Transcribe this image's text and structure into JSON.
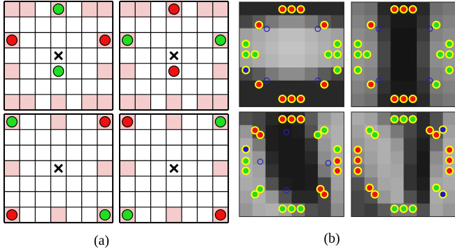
{
  "captions": {
    "a": "(a)",
    "b": "(b)"
  },
  "colors": {
    "grid_line": "#000000",
    "shaded_cell": "#f4cccc",
    "dot_green": "#22dd22",
    "dot_red": "#ee1111",
    "dot_blue": "#1a1acc",
    "dot_ring_yellow": "#ffff00",
    "open_circle_blue": "#2222bb",
    "cross": "#000000"
  },
  "grids": [
    {
      "id": "top-left",
      "shaded": [
        [
          0,
          0
        ],
        [
          0,
          1
        ],
        [
          0,
          3
        ],
        [
          0,
          5
        ],
        [
          0,
          6
        ],
        [
          2,
          0
        ],
        [
          2,
          6
        ],
        [
          4,
          0
        ],
        [
          4,
          6
        ],
        [
          6,
          0
        ],
        [
          6,
          1
        ],
        [
          6,
          3
        ],
        [
          6,
          5
        ],
        [
          6,
          6
        ]
      ],
      "dots": [
        {
          "r": 0,
          "c": 3,
          "color": "green"
        },
        {
          "r": 2,
          "c": 0,
          "color": "red"
        },
        {
          "r": 2,
          "c": 6,
          "color": "red"
        },
        {
          "r": 4,
          "c": 3,
          "color": "green"
        }
      ]
    },
    {
      "id": "top-right",
      "shaded": [
        [
          0,
          0
        ],
        [
          0,
          1
        ],
        [
          0,
          3
        ],
        [
          0,
          5
        ],
        [
          0,
          6
        ],
        [
          2,
          0
        ],
        [
          2,
          6
        ],
        [
          4,
          0
        ],
        [
          4,
          6
        ],
        [
          6,
          0
        ],
        [
          6,
          1
        ],
        [
          6,
          3
        ],
        [
          6,
          5
        ],
        [
          6,
          6
        ]
      ],
      "dots": [
        {
          "r": 0,
          "c": 3,
          "color": "red"
        },
        {
          "r": 2,
          "c": 0,
          "color": "green"
        },
        {
          "r": 2,
          "c": 6,
          "color": "green"
        },
        {
          "r": 4,
          "c": 3,
          "color": "red"
        }
      ]
    },
    {
      "id": "bottom-left",
      "shaded": [
        [
          0,
          0
        ],
        [
          0,
          3
        ],
        [
          0,
          6
        ],
        [
          3,
          0
        ],
        [
          3,
          6
        ],
        [
          6,
          0
        ],
        [
          6,
          3
        ],
        [
          6,
          6
        ]
      ],
      "dots": [
        {
          "r": 0,
          "c": 0,
          "color": "green"
        },
        {
          "r": 0,
          "c": 6,
          "color": "red"
        },
        {
          "r": 6,
          "c": 0,
          "color": "red"
        },
        {
          "r": 6,
          "c": 6,
          "color": "green"
        }
      ]
    },
    {
      "id": "bottom-right",
      "shaded": [
        [
          0,
          0
        ],
        [
          0,
          3
        ],
        [
          0,
          6
        ],
        [
          3,
          0
        ],
        [
          3,
          6
        ],
        [
          6,
          0
        ],
        [
          6,
          3
        ],
        [
          6,
          6
        ]
      ],
      "dots": [
        {
          "r": 0,
          "c": 0,
          "color": "red"
        },
        {
          "r": 0,
          "c": 6,
          "color": "green"
        },
        {
          "r": 6,
          "c": 0,
          "color": "green"
        },
        {
          "r": 6,
          "c": 6,
          "color": "red"
        }
      ]
    }
  ],
  "heatmaps": [
    {
      "id": "top-left",
      "cells": [
        [
          40,
          40,
          40,
          40,
          40,
          40,
          40,
          40
        ],
        [
          70,
          90,
          120,
          140,
          140,
          120,
          90,
          70
        ],
        [
          160,
          170,
          180,
          190,
          190,
          180,
          170,
          160
        ],
        [
          165,
          175,
          185,
          195,
          195,
          185,
          175,
          165
        ],
        [
          160,
          170,
          180,
          190,
          190,
          180,
          170,
          160
        ],
        [
          70,
          90,
          120,
          140,
          140,
          120,
          90,
          70
        ],
        [
          40,
          40,
          40,
          40,
          40,
          40,
          40,
          40
        ],
        [
          40,
          40,
          40,
          40,
          40,
          40,
          40,
          40
        ]
      ],
      "markers": [
        {
          "x": 3.3,
          "y": 0.55,
          "type": "red"
        },
        {
          "x": 4.0,
          "y": 0.55,
          "type": "red"
        },
        {
          "x": 4.7,
          "y": 0.55,
          "type": "red"
        },
        {
          "x": 1.5,
          "y": 1.75,
          "type": "red"
        },
        {
          "x": 6.5,
          "y": 1.75,
          "type": "red"
        },
        {
          "x": 2.1,
          "y": 2.05,
          "type": "open"
        },
        {
          "x": 6.0,
          "y": 2.05,
          "type": "open"
        },
        {
          "x": 0.5,
          "y": 3.2,
          "type": "green"
        },
        {
          "x": 0.5,
          "y": 4.0,
          "type": "green"
        },
        {
          "x": 1.2,
          "y": 4.0,
          "type": "green"
        },
        {
          "x": 6.8,
          "y": 4.0,
          "type": "green"
        },
        {
          "x": 7.5,
          "y": 4.0,
          "type": "green"
        },
        {
          "x": 7.5,
          "y": 3.2,
          "type": "green"
        },
        {
          "x": 0.5,
          "y": 5.2,
          "type": "blue"
        },
        {
          "x": 7.5,
          "y": 5.2,
          "type": "green"
        },
        {
          "x": 1.5,
          "y": 6.3,
          "type": "red"
        },
        {
          "x": 6.5,
          "y": 6.3,
          "type": "red"
        },
        {
          "x": 2.1,
          "y": 6.0,
          "type": "open"
        },
        {
          "x": 6.0,
          "y": 6.0,
          "type": "open"
        },
        {
          "x": 3.3,
          "y": 7.4,
          "type": "red"
        },
        {
          "x": 4.0,
          "y": 7.4,
          "type": "red"
        },
        {
          "x": 4.7,
          "y": 7.4,
          "type": "red"
        }
      ]
    },
    {
      "id": "top-right",
      "cells": [
        [
          120,
          110,
          40,
          30,
          30,
          40,
          110,
          120
        ],
        [
          130,
          120,
          50,
          25,
          25,
          50,
          120,
          130
        ],
        [
          140,
          130,
          60,
          20,
          20,
          60,
          130,
          140
        ],
        [
          150,
          140,
          70,
          20,
          20,
          70,
          140,
          150
        ],
        [
          150,
          140,
          70,
          20,
          20,
          70,
          140,
          150
        ],
        [
          140,
          130,
          60,
          20,
          20,
          60,
          130,
          140
        ],
        [
          130,
          120,
          50,
          25,
          25,
          50,
          120,
          130
        ],
        [
          120,
          110,
          40,
          30,
          30,
          40,
          110,
          120
        ]
      ],
      "markers": [
        {
          "x": 3.3,
          "y": 0.55,
          "type": "red"
        },
        {
          "x": 4.0,
          "y": 0.55,
          "type": "red"
        },
        {
          "x": 4.7,
          "y": 0.55,
          "type": "red"
        },
        {
          "x": 1.5,
          "y": 1.75,
          "type": "red"
        },
        {
          "x": 2.1,
          "y": 2.05,
          "type": "open"
        },
        {
          "x": 6.0,
          "y": 2.05,
          "type": "open"
        },
        {
          "x": 6.5,
          "y": 1.75,
          "type": "green"
        },
        {
          "x": 0.5,
          "y": 3.2,
          "type": "green"
        },
        {
          "x": 0.5,
          "y": 4.0,
          "type": "green"
        },
        {
          "x": 1.2,
          "y": 4.0,
          "type": "green"
        },
        {
          "x": 6.8,
          "y": 4.0,
          "type": "green"
        },
        {
          "x": 7.5,
          "y": 4.0,
          "type": "green"
        },
        {
          "x": 7.5,
          "y": 3.2,
          "type": "green"
        },
        {
          "x": 0.5,
          "y": 5.2,
          "type": "green"
        },
        {
          "x": 7.5,
          "y": 5.2,
          "type": "green"
        },
        {
          "x": 1.5,
          "y": 6.3,
          "type": "red"
        },
        {
          "x": 2.1,
          "y": 6.0,
          "type": "open"
        },
        {
          "x": 6.0,
          "y": 6.0,
          "type": "open"
        },
        {
          "x": 6.5,
          "y": 6.3,
          "type": "green"
        },
        {
          "x": 3.3,
          "y": 7.4,
          "type": "red"
        },
        {
          "x": 4.0,
          "y": 7.4,
          "type": "red"
        },
        {
          "x": 4.7,
          "y": 7.4,
          "type": "red"
        }
      ]
    },
    {
      "id": "bottom-left",
      "cells": [
        [
          80,
          70,
          40,
          30,
          40,
          90,
          150,
          170
        ],
        [
          150,
          70,
          30,
          25,
          30,
          80,
          160,
          175
        ],
        [
          170,
          120,
          30,
          25,
          25,
          50,
          150,
          175
        ],
        [
          175,
          150,
          40,
          25,
          25,
          40,
          140,
          170
        ],
        [
          175,
          160,
          50,
          25,
          25,
          30,
          120,
          165
        ],
        [
          170,
          165,
          80,
          30,
          25,
          30,
          70,
          160
        ],
        [
          160,
          175,
          150,
          80,
          40,
          40,
          70,
          150
        ],
        [
          150,
          170,
          175,
          160,
          120,
          80,
          70,
          140
        ]
      ],
      "markers": [
        {
          "x": 3.3,
          "y": 0.55,
          "type": "red"
        },
        {
          "x": 4.0,
          "y": 0.55,
          "type": "red"
        },
        {
          "x": 4.7,
          "y": 0.55,
          "type": "red"
        },
        {
          "x": 1.2,
          "y": 1.4,
          "type": "red"
        },
        {
          "x": 1.6,
          "y": 1.75,
          "type": "red"
        },
        {
          "x": 3.6,
          "y": 1.55,
          "type": "open"
        },
        {
          "x": 6.5,
          "y": 1.4,
          "type": "green"
        },
        {
          "x": 6.0,
          "y": 1.75,
          "type": "green"
        },
        {
          "x": 0.5,
          "y": 2.85,
          "type": "blue"
        },
        {
          "x": 0.5,
          "y": 3.75,
          "type": "green"
        },
        {
          "x": 0.5,
          "y": 4.5,
          "type": "green"
        },
        {
          "x": 1.6,
          "y": 3.8,
          "type": "open"
        },
        {
          "x": 7.5,
          "y": 2.85,
          "type": "green"
        },
        {
          "x": 7.5,
          "y": 3.75,
          "type": "red"
        },
        {
          "x": 6.8,
          "y": 3.9,
          "type": "open"
        },
        {
          "x": 7.5,
          "y": 4.5,
          "type": "red"
        },
        {
          "x": 1.6,
          "y": 5.9,
          "type": "green"
        },
        {
          "x": 1.2,
          "y": 6.3,
          "type": "green"
        },
        {
          "x": 3.6,
          "y": 6.0,
          "type": "open"
        },
        {
          "x": 6.2,
          "y": 5.9,
          "type": "red"
        },
        {
          "x": 6.5,
          "y": 6.3,
          "type": "red"
        },
        {
          "x": 3.3,
          "y": 7.4,
          "type": "green"
        },
        {
          "x": 4.0,
          "y": 7.4,
          "type": "green"
        },
        {
          "x": 4.7,
          "y": 7.4,
          "type": "green"
        }
      ]
    },
    {
      "id": "bottom-right",
      "cells": [
        [
          170,
          160,
          120,
          80,
          70,
          40,
          80,
          150
        ],
        [
          160,
          175,
          160,
          120,
          70,
          40,
          80,
          160
        ],
        [
          150,
          165,
          175,
          150,
          60,
          30,
          110,
          170
        ],
        [
          140,
          160,
          175,
          160,
          60,
          25,
          140,
          175
        ],
        [
          120,
          150,
          170,
          165,
          50,
          25,
          150,
          175
        ],
        [
          80,
          130,
          165,
          170,
          50,
          30,
          165,
          170
        ],
        [
          70,
          80,
          150,
          170,
          80,
          40,
          170,
          160
        ],
        [
          70,
          60,
          90,
          120,
          120,
          80,
          165,
          150
        ]
      ],
      "markers": [
        {
          "x": 3.3,
          "y": 0.55,
          "type": "green"
        },
        {
          "x": 4.0,
          "y": 0.55,
          "type": "green"
        },
        {
          "x": 4.7,
          "y": 0.55,
          "type": "green"
        },
        {
          "x": 1.4,
          "y": 1.4,
          "type": "green"
        },
        {
          "x": 1.8,
          "y": 1.75,
          "type": "green"
        },
        {
          "x": 6.0,
          "y": 1.4,
          "type": "red"
        },
        {
          "x": 6.5,
          "y": 1.75,
          "type": "red"
        },
        {
          "x": 7.0,
          "y": 1.35,
          "type": "blue"
        },
        {
          "x": 0.5,
          "y": 2.9,
          "type": "red"
        },
        {
          "x": 0.5,
          "y": 3.7,
          "type": "red"
        },
        {
          "x": 0.5,
          "y": 4.5,
          "type": "red"
        },
        {
          "x": 7.5,
          "y": 2.9,
          "type": "red"
        },
        {
          "x": 7.5,
          "y": 3.7,
          "type": "red"
        },
        {
          "x": 7.5,
          "y": 4.5,
          "type": "red"
        },
        {
          "x": 1.4,
          "y": 5.8,
          "type": "red"
        },
        {
          "x": 1.8,
          "y": 6.3,
          "type": "red"
        },
        {
          "x": 6.5,
          "y": 5.8,
          "type": "green"
        },
        {
          "x": 7.0,
          "y": 6.3,
          "type": "blue"
        },
        {
          "x": 3.3,
          "y": 7.4,
          "type": "green"
        },
        {
          "x": 4.0,
          "y": 7.4,
          "type": "green"
        },
        {
          "x": 4.7,
          "y": 7.4,
          "type": "green"
        }
      ]
    }
  ]
}
